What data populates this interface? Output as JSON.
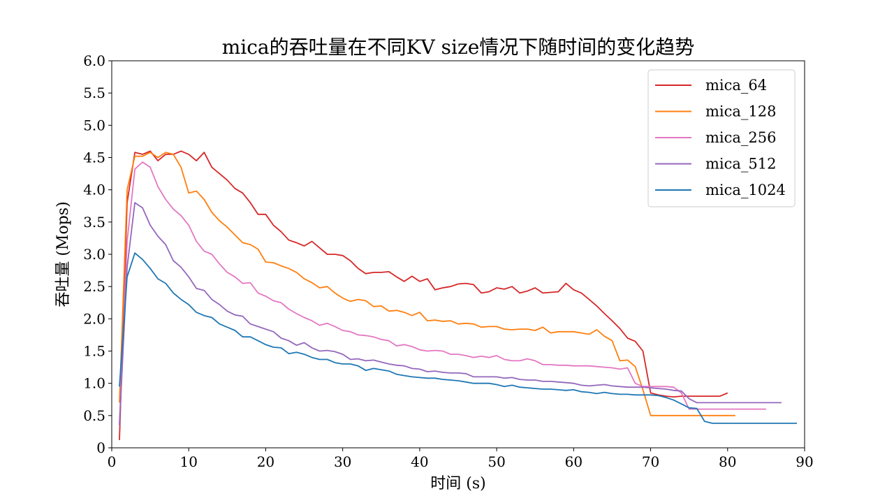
{
  "chart_data": {
    "type": "line",
    "title": "mica的吞吐量在不同KV size情况下随时间的变化趋势",
    "xlabel": "时间 (s)",
    "ylabel": "吞吐量 (Mops)",
    "xlim": [
      0,
      90
    ],
    "ylim": [
      0,
      6
    ],
    "x_ticks": [
      0,
      10,
      20,
      30,
      40,
      50,
      60,
      70,
      80,
      90
    ],
    "y_ticks": [
      0,
      0.5,
      1.0,
      1.5,
      2.0,
      2.5,
      3.0,
      3.5,
      4.0,
      4.5,
      5.0,
      5.5,
      6.0
    ],
    "x_tick_labels": [
      "0",
      "10",
      "20",
      "30",
      "40",
      "50",
      "60",
      "70",
      "80",
      "90"
    ],
    "y_tick_labels": [
      "0",
      "0.5",
      "1.0",
      "1.5",
      "2.0",
      "2.5",
      "3.0",
      "3.5",
      "4.0",
      "4.5",
      "5.0",
      "5.5",
      "6.0"
    ],
    "grid": false,
    "legend_position": "top-right",
    "series": [
      {
        "name": "mica_64",
        "color": "#d62728",
        "x": [
          1,
          2,
          3,
          4,
          5,
          6,
          7,
          8,
          9,
          10,
          11,
          12,
          13,
          14,
          15,
          16,
          17,
          18,
          19,
          20,
          21,
          22,
          23,
          24,
          25,
          26,
          27,
          28,
          29,
          30,
          31,
          32,
          33,
          34,
          35,
          36,
          37,
          38,
          39,
          40,
          41,
          42,
          43,
          44,
          45,
          46,
          47,
          48,
          49,
          50,
          51,
          52,
          53,
          54,
          55,
          56,
          57,
          58,
          59,
          60,
          61,
          62,
          63,
          64,
          65,
          66,
          67,
          68,
          69,
          70,
          71,
          72,
          73,
          74,
          75,
          76,
          77,
          78,
          79,
          80
        ],
        "values": [
          0.12,
          3.8,
          4.58,
          4.55,
          4.6,
          4.45,
          4.55,
          4.55,
          4.6,
          4.55,
          4.45,
          4.58,
          4.35,
          4.25,
          4.15,
          4.02,
          3.95,
          3.8,
          3.62,
          3.62,
          3.45,
          3.35,
          3.22,
          3.18,
          3.13,
          3.2,
          3.1,
          3.0,
          3.0,
          2.98,
          2.9,
          2.78,
          2.7,
          2.72,
          2.72,
          2.73,
          2.65,
          2.58,
          2.66,
          2.58,
          2.62,
          2.45,
          2.48,
          2.5,
          2.54,
          2.55,
          2.53,
          2.4,
          2.42,
          2.48,
          2.46,
          2.5,
          2.4,
          2.43,
          2.48,
          2.4,
          2.41,
          2.42,
          2.55,
          2.45,
          2.4,
          2.3,
          2.2,
          2.08,
          1.97,
          1.85,
          1.7,
          1.65,
          1.5,
          0.85,
          0.82,
          0.8,
          0.79,
          0.8,
          0.8,
          0.8,
          0.8,
          0.8,
          0.8,
          0.85
        ]
      },
      {
        "name": "mica_128",
        "color": "#ff7f0e",
        "x": [
          1,
          2,
          3,
          4,
          5,
          6,
          7,
          8,
          9,
          10,
          11,
          12,
          13,
          14,
          15,
          16,
          17,
          18,
          19,
          20,
          21,
          22,
          23,
          24,
          25,
          26,
          27,
          28,
          29,
          30,
          31,
          32,
          33,
          34,
          35,
          36,
          37,
          38,
          39,
          40,
          41,
          42,
          43,
          44,
          45,
          46,
          47,
          48,
          49,
          50,
          51,
          52,
          53,
          54,
          55,
          56,
          57,
          58,
          59,
          60,
          61,
          62,
          63,
          64,
          65,
          66,
          67,
          68,
          69,
          70,
          71,
          72,
          73,
          74,
          75,
          76,
          77,
          78,
          79,
          80,
          81
        ],
        "values": [
          0.7,
          4.0,
          4.52,
          4.52,
          4.58,
          4.5,
          4.58,
          4.55,
          4.35,
          3.95,
          3.98,
          3.85,
          3.65,
          3.52,
          3.42,
          3.3,
          3.18,
          3.15,
          3.08,
          2.88,
          2.87,
          2.82,
          2.78,
          2.72,
          2.62,
          2.56,
          2.48,
          2.5,
          2.4,
          2.32,
          2.27,
          2.3,
          2.28,
          2.19,
          2.2,
          2.12,
          2.13,
          2.1,
          2.05,
          2.1,
          1.97,
          1.98,
          1.96,
          1.97,
          1.92,
          1.93,
          1.92,
          1.87,
          1.88,
          1.88,
          1.84,
          1.83,
          1.84,
          1.84,
          1.82,
          1.87,
          1.78,
          1.8,
          1.8,
          1.8,
          1.78,
          1.76,
          1.83,
          1.73,
          1.66,
          1.35,
          1.36,
          1.26,
          0.9,
          0.5,
          0.5,
          0.5,
          0.5,
          0.5,
          0.5,
          0.5,
          0.5,
          0.5,
          0.5,
          0.5,
          0.5
        ]
      },
      {
        "name": "mica_256",
        "color": "#e377c2",
        "x": [
          1,
          2,
          3,
          4,
          5,
          6,
          7,
          8,
          9,
          10,
          11,
          12,
          13,
          14,
          15,
          16,
          17,
          18,
          19,
          20,
          21,
          22,
          23,
          24,
          25,
          26,
          27,
          28,
          29,
          30,
          31,
          32,
          33,
          34,
          35,
          36,
          37,
          38,
          39,
          40,
          41,
          42,
          43,
          44,
          45,
          46,
          47,
          48,
          49,
          50,
          51,
          52,
          53,
          54,
          55,
          56,
          57,
          58,
          59,
          60,
          61,
          62,
          63,
          64,
          65,
          66,
          67,
          68,
          69,
          70,
          71,
          72,
          73,
          74,
          75,
          76,
          77,
          78,
          79,
          80,
          81,
          82,
          83,
          84,
          85
        ],
        "values": [
          0.35,
          3.2,
          4.32,
          4.43,
          4.35,
          4.05,
          3.85,
          3.7,
          3.6,
          3.45,
          3.2,
          3.05,
          3.0,
          2.85,
          2.72,
          2.65,
          2.55,
          2.56,
          2.4,
          2.35,
          2.28,
          2.25,
          2.15,
          2.08,
          2.02,
          1.97,
          1.9,
          1.93,
          1.88,
          1.82,
          1.8,
          1.75,
          1.74,
          1.72,
          1.68,
          1.66,
          1.58,
          1.6,
          1.57,
          1.52,
          1.5,
          1.51,
          1.5,
          1.45,
          1.45,
          1.43,
          1.4,
          1.42,
          1.4,
          1.43,
          1.37,
          1.35,
          1.35,
          1.38,
          1.35,
          1.29,
          1.29,
          1.28,
          1.28,
          1.27,
          1.27,
          1.27,
          1.26,
          1.25,
          1.24,
          1.22,
          1.24,
          1.0,
          0.95,
          0.95,
          0.95,
          0.95,
          0.94,
          0.85,
          0.6,
          0.6,
          0.6,
          0.6,
          0.6,
          0.6,
          0.6,
          0.6,
          0.6,
          0.6,
          0.6
        ]
      },
      {
        "name": "mica_512",
        "color": "#9467bd",
        "x": [
          1,
          2,
          3,
          4,
          5,
          6,
          7,
          8,
          9,
          10,
          11,
          12,
          13,
          14,
          15,
          16,
          17,
          18,
          19,
          20,
          21,
          22,
          23,
          24,
          25,
          26,
          27,
          28,
          29,
          30,
          31,
          32,
          33,
          34,
          35,
          36,
          37,
          38,
          39,
          40,
          41,
          42,
          43,
          44,
          45,
          46,
          47,
          48,
          49,
          50,
          51,
          52,
          53,
          54,
          55,
          56,
          57,
          58,
          59,
          60,
          61,
          62,
          63,
          64,
          65,
          66,
          67,
          68,
          69,
          70,
          71,
          72,
          73,
          74,
          75,
          76,
          77,
          78,
          79,
          80,
          81,
          82,
          83,
          84,
          85,
          86,
          87
        ],
        "values": [
          0.35,
          2.8,
          3.8,
          3.72,
          3.45,
          3.28,
          3.15,
          2.9,
          2.8,
          2.65,
          2.47,
          2.44,
          2.3,
          2.22,
          2.12,
          2.06,
          2.04,
          1.92,
          1.88,
          1.84,
          1.8,
          1.7,
          1.66,
          1.59,
          1.63,
          1.55,
          1.5,
          1.51,
          1.49,
          1.45,
          1.37,
          1.38,
          1.35,
          1.36,
          1.33,
          1.3,
          1.28,
          1.27,
          1.23,
          1.22,
          1.18,
          1.19,
          1.17,
          1.16,
          1.16,
          1.15,
          1.1,
          1.1,
          1.1,
          1.1,
          1.08,
          1.09,
          1.06,
          1.05,
          1.05,
          1.03,
          1.03,
          1.02,
          1.01,
          1.0,
          0.97,
          0.96,
          0.97,
          0.98,
          0.96,
          0.95,
          0.94,
          0.94,
          0.94,
          0.93,
          0.92,
          0.91,
          0.89,
          0.88,
          0.76,
          0.7,
          0.7,
          0.7,
          0.7,
          0.7,
          0.7,
          0.7,
          0.7,
          0.7,
          0.7,
          0.7,
          0.7
        ]
      },
      {
        "name": "mica_1024",
        "color": "#1f77b4",
        "x": [
          1,
          2,
          3,
          4,
          5,
          6,
          7,
          8,
          9,
          10,
          11,
          12,
          13,
          14,
          15,
          16,
          17,
          18,
          19,
          20,
          21,
          22,
          23,
          24,
          25,
          26,
          27,
          28,
          29,
          30,
          31,
          32,
          33,
          34,
          35,
          36,
          37,
          38,
          39,
          40,
          41,
          42,
          43,
          44,
          45,
          46,
          47,
          48,
          49,
          50,
          51,
          52,
          53,
          54,
          55,
          56,
          57,
          58,
          59,
          60,
          61,
          62,
          63,
          64,
          65,
          66,
          67,
          68,
          69,
          70,
          71,
          72,
          73,
          74,
          75,
          76,
          77,
          78,
          79,
          80,
          81,
          82,
          83,
          84,
          85,
          86,
          87,
          88,
          89
        ],
        "values": [
          0.95,
          2.65,
          3.02,
          2.92,
          2.78,
          2.62,
          2.55,
          2.4,
          2.3,
          2.22,
          2.1,
          2.05,
          2.02,
          1.92,
          1.87,
          1.82,
          1.72,
          1.72,
          1.66,
          1.6,
          1.56,
          1.55,
          1.46,
          1.48,
          1.45,
          1.4,
          1.37,
          1.37,
          1.32,
          1.3,
          1.3,
          1.27,
          1.2,
          1.23,
          1.21,
          1.19,
          1.14,
          1.12,
          1.1,
          1.09,
          1.08,
          1.08,
          1.06,
          1.05,
          1.04,
          1.02,
          1.0,
          1.0,
          1.0,
          0.98,
          0.95,
          0.97,
          0.94,
          0.93,
          0.92,
          0.91,
          0.91,
          0.9,
          0.89,
          0.9,
          0.87,
          0.86,
          0.84,
          0.86,
          0.84,
          0.83,
          0.83,
          0.82,
          0.82,
          0.82,
          0.81,
          0.78,
          0.74,
          0.68,
          0.62,
          0.61,
          0.41,
          0.38,
          0.38,
          0.38,
          0.38,
          0.38,
          0.38,
          0.38,
          0.38,
          0.38,
          0.38,
          0.38,
          0.38
        ]
      }
    ]
  }
}
